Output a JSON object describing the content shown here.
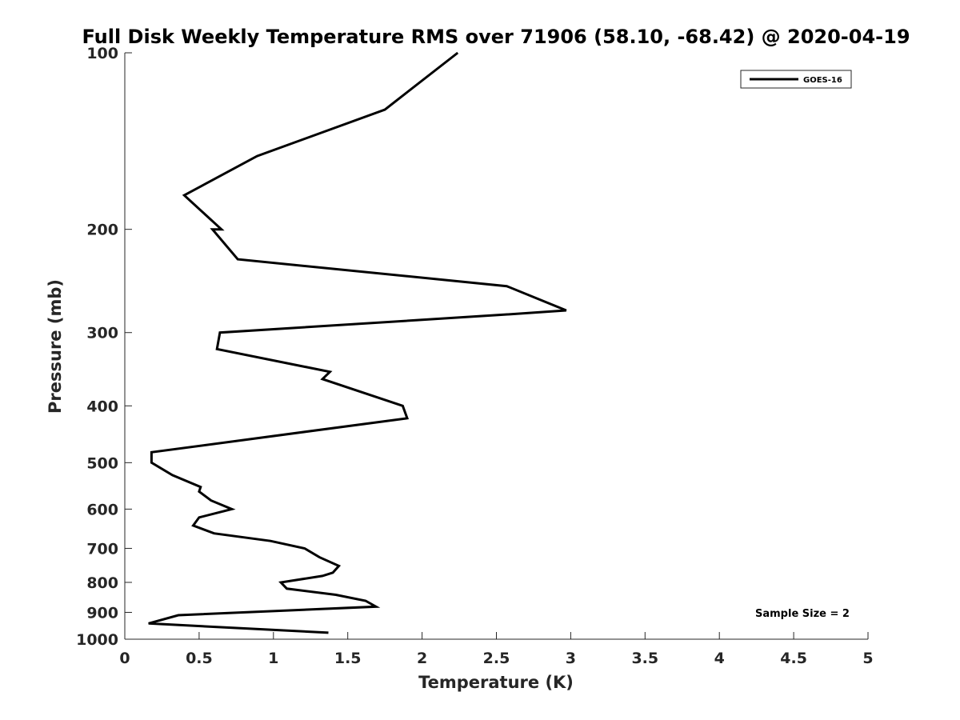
{
  "chart_data": {
    "type": "line",
    "title": "Full Disk Weekly Temperature RMS over 71906 (58.10, -68.42) @ 2020-04-19",
    "xlabel": "Temperature (K)",
    "ylabel": "Pressure (mb)",
    "xlim": [
      0,
      5
    ],
    "ylim": [
      100,
      1000
    ],
    "y_scale": "log",
    "y_reversed": true,
    "grid": false,
    "legend_position": "top-right",
    "x_ticks": [
      "0",
      "0.5",
      "1",
      "1.5",
      "2",
      "2.5",
      "3",
      "3.5",
      "4",
      "4.5",
      "5"
    ],
    "y_ticks": [
      "100",
      "200",
      "300",
      "400",
      "500",
      "600",
      "700",
      "800",
      "900",
      "1000"
    ],
    "annotation": "Sample Size = 2",
    "series": [
      {
        "name": "GOES-16",
        "color": "#000000",
        "points": [
          {
            "x": 2.24,
            "y": 100
          },
          {
            "x": 1.75,
            "y": 125
          },
          {
            "x": 0.89,
            "y": 150
          },
          {
            "x": 0.4,
            "y": 175
          },
          {
            "x": 0.65,
            "y": 200
          },
          {
            "x": 0.59,
            "y": 200
          },
          {
            "x": 0.76,
            "y": 225
          },
          {
            "x": 2.57,
            "y": 250
          },
          {
            "x": 2.97,
            "y": 275
          },
          {
            "x": 2.51,
            "y": 280
          },
          {
            "x": 0.64,
            "y": 300
          },
          {
            "x": 0.62,
            "y": 320
          },
          {
            "x": 1.38,
            "y": 350
          },
          {
            "x": 1.33,
            "y": 360
          },
          {
            "x": 1.87,
            "y": 400
          },
          {
            "x": 1.9,
            "y": 420
          },
          {
            "x": 0.18,
            "y": 480
          },
          {
            "x": 0.18,
            "y": 500
          },
          {
            "x": 0.32,
            "y": 525
          },
          {
            "x": 0.51,
            "y": 550
          },
          {
            "x": 0.5,
            "y": 560
          },
          {
            "x": 0.58,
            "y": 580
          },
          {
            "x": 0.72,
            "y": 600
          },
          {
            "x": 0.5,
            "y": 620
          },
          {
            "x": 0.46,
            "y": 640
          },
          {
            "x": 0.6,
            "y": 660
          },
          {
            "x": 0.98,
            "y": 680
          },
          {
            "x": 1.21,
            "y": 700
          },
          {
            "x": 1.31,
            "y": 725
          },
          {
            "x": 1.44,
            "y": 750
          },
          {
            "x": 1.4,
            "y": 770
          },
          {
            "x": 1.33,
            "y": 780
          },
          {
            "x": 1.05,
            "y": 800
          },
          {
            "x": 1.09,
            "y": 820
          },
          {
            "x": 1.42,
            "y": 840
          },
          {
            "x": 1.62,
            "y": 860
          },
          {
            "x": 1.69,
            "y": 880
          },
          {
            "x": 0.36,
            "y": 910
          },
          {
            "x": 0.16,
            "y": 940
          },
          {
            "x": 1.37,
            "y": 975
          }
        ]
      }
    ]
  }
}
